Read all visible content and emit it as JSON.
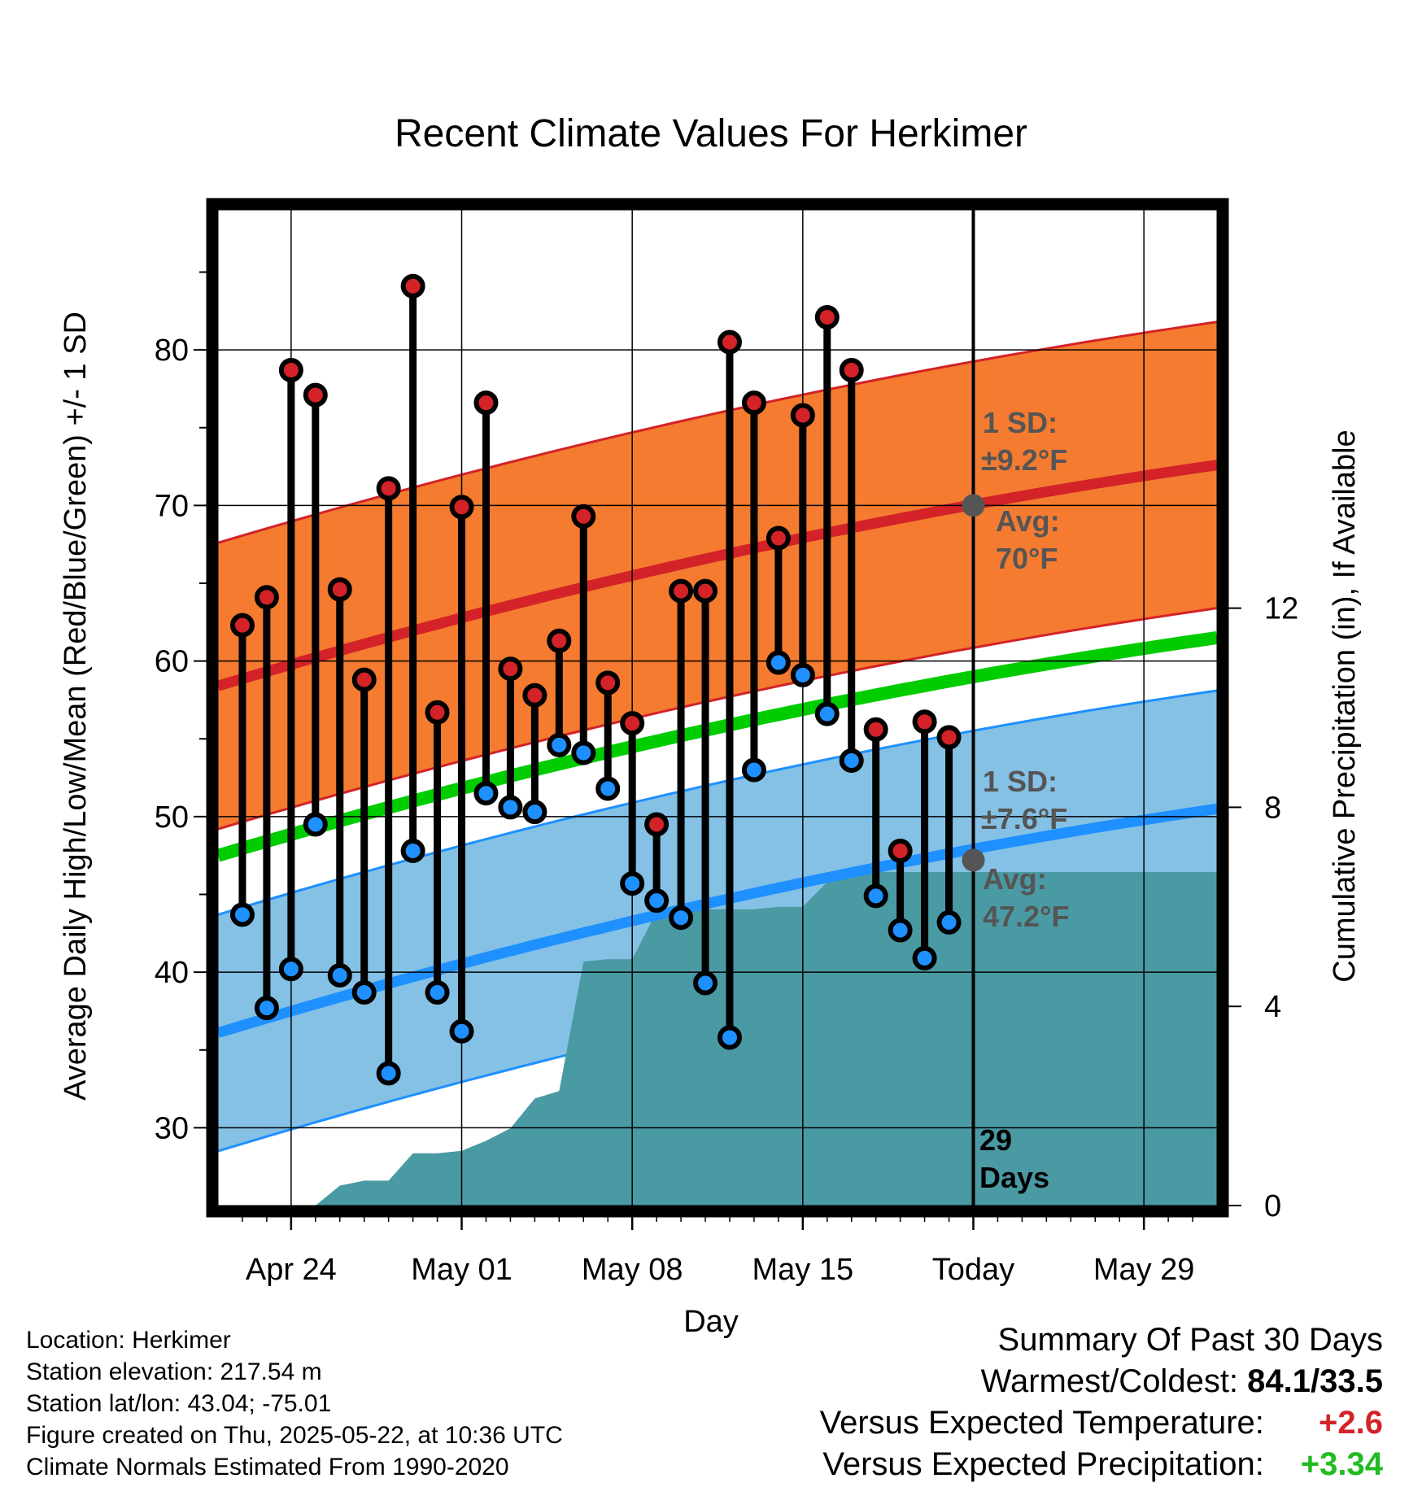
{
  "chart_data": {
    "type": "line",
    "title": "Recent Climate Values For Herkimer",
    "xlabel": "Day",
    "ylabel": "Average Daily High/Low/Mean (Red/Blue/Green) +/- 1 SD",
    "y2label": "Cumulative Precipitation (in), If Available",
    "xlim": [
      "2025-04-21",
      "2025-06-01"
    ],
    "ylim": [
      25,
      89
    ],
    "y2lim": [
      0,
      20
    ],
    "x_ticks": [
      "2025-04-24",
      "2025-05-01",
      "2025-05-08",
      "2025-05-15",
      "2025-05-22",
      "2025-05-29"
    ],
    "x_tick_labels": [
      "Apr 24",
      "May 01",
      "May 08",
      "May 15",
      "Today",
      "May 29"
    ],
    "y_ticks": [
      30,
      40,
      50,
      60,
      70,
      80
    ],
    "y2_ticks": [
      0,
      4,
      8,
      12
    ],
    "grid": true,
    "colors": {
      "high": "#d32228",
      "low": "#1e90ff",
      "mean": "#00cc00",
      "high_band": "#f47b2f",
      "low_band": "#84c1e5",
      "precip": "#4a9aa4",
      "marker_line": "#000000",
      "avg_marker": "#555555"
    },
    "dates": [
      "2025-04-22",
      "2025-04-23",
      "2025-04-24",
      "2025-04-25",
      "2025-04-26",
      "2025-04-27",
      "2025-04-28",
      "2025-04-29",
      "2025-04-30",
      "2025-05-01",
      "2025-05-02",
      "2025-05-03",
      "2025-05-04",
      "2025-05-05",
      "2025-05-06",
      "2025-05-07",
      "2025-05-08",
      "2025-05-09",
      "2025-05-10",
      "2025-05-11",
      "2025-05-12",
      "2025-05-13",
      "2025-05-14",
      "2025-05-15",
      "2025-05-16",
      "2025-05-17",
      "2025-05-18",
      "2025-05-19",
      "2025-05-20",
      "2025-05-21"
    ],
    "series": [
      {
        "name": "Daily High",
        "values": [
          62.3,
          64.1,
          78.7,
          77.1,
          64.6,
          58.8,
          71.1,
          84.1,
          56.7,
          69.9,
          76.6,
          59.5,
          57.8,
          61.3,
          69.3,
          58.6,
          56.0,
          49.5,
          64.5,
          64.5,
          80.5,
          76.6,
          67.9,
          75.8,
          82.1,
          78.7,
          55.6,
          47.8,
          56.1,
          55.1
        ]
      },
      {
        "name": "Daily Low",
        "values": [
          43.7,
          37.7,
          40.2,
          49.5,
          39.8,
          38.7,
          33.5,
          47.8,
          38.7,
          36.2,
          51.5,
          50.6,
          50.3,
          54.6,
          54.1,
          51.8,
          45.7,
          44.6,
          43.5,
          39.3,
          35.8,
          53.0,
          59.9,
          59.1,
          56.6,
          53.6,
          44.9,
          42.7,
          40.9,
          43.2
        ]
      },
      {
        "name": "Cumulative Precipitation",
        "values": [
          0,
          0,
          0,
          0,
          0.4,
          0.5,
          0.5,
          1.05,
          1.05,
          1.1,
          1.3,
          1.55,
          2.15,
          2.3,
          4.9,
          4.95,
          4.95,
          5.9,
          5.95,
          5.95,
          5.95,
          5.95,
          6.0,
          6.0,
          6.5,
          6.7,
          6.7,
          6.7,
          6.7,
          6.7
        ]
      }
    ],
    "normals": {
      "high_avg_start": 58.4,
      "high_avg_end": 72.6,
      "high_sd": 9.2,
      "low_avg_start": 36.1,
      "low_avg_end": 50.5,
      "low_sd": 7.6,
      "mean_start": 47.5,
      "mean_end": 61.5
    },
    "precip_projection": 6.7,
    "today": "2025-05-22",
    "annotations": {
      "high_sd_label": "1 SD:",
      "high_sd_value": "±9.2°F",
      "high_avg_label": "Avg:",
      "high_avg_value": "70°F",
      "high_avg": 70,
      "low_sd_label": "1 SD:",
      "low_sd_value": "±7.6°F",
      "low_avg_label": "Avg:",
      "low_avg_value": "47.2°F",
      "low_avg": 47.2,
      "days_count": "29",
      "days_label": "Days"
    }
  },
  "info": {
    "location": "Location: Herkimer",
    "elevation": "Station elevation: 217.54 m",
    "latlon": "Station lat/lon: 43.04; -75.01",
    "created": "Figure created on Thu, 2025-05-22, at 10:36 UTC",
    "normals": "Climate Normals Estimated From 1990-2020"
  },
  "summary": {
    "heading": "Summary Of Past 30 Days",
    "warmest_label": "Warmest/Coldest:",
    "warmest_value": "84.1/33.5",
    "temp_label": "Versus Expected Temperature:",
    "temp_value": "+2.6",
    "temp_color": "#d32228",
    "precip_label": "Versus Expected Precipitation:",
    "precip_value": "+3.34",
    "precip_color": "#22bb22"
  }
}
